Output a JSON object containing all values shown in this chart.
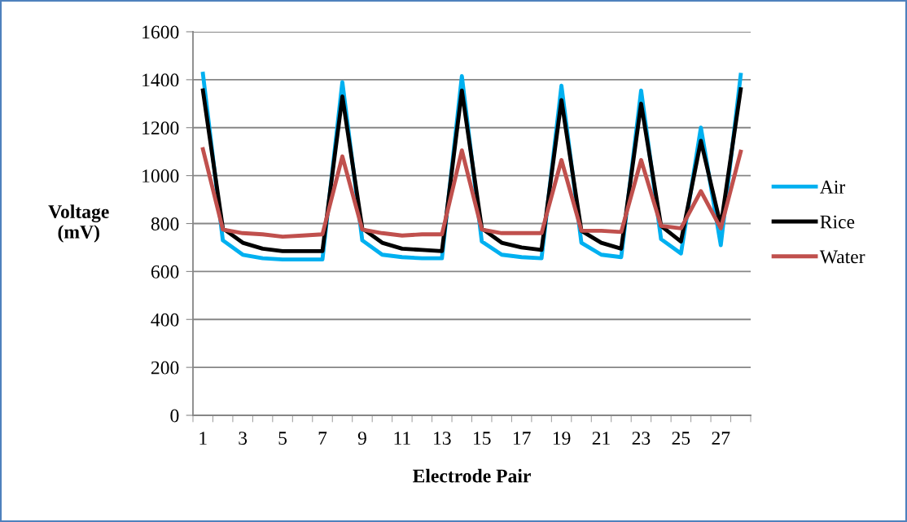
{
  "chart_data": {
    "type": "line",
    "xlabel": "Electrode Pair",
    "ylabel": "Voltage\n(mV)",
    "categories": [
      "1",
      null,
      "3",
      null,
      "5",
      null,
      "7",
      null,
      "9",
      null,
      "11",
      null,
      "13",
      null,
      "15",
      null,
      "17",
      null,
      "19",
      null,
      "21",
      null,
      "23",
      null,
      "25",
      null,
      "27",
      null
    ],
    "series": [
      {
        "name": "Air",
        "color": "#00b0f0",
        "values": [
          1425,
          730,
          670,
          655,
          650,
          650,
          650,
          1390,
          730,
          670,
          660,
          655,
          655,
          1415,
          725,
          670,
          660,
          655,
          1375,
          720,
          670,
          660,
          1355,
          735,
          675,
          1200,
          710,
          1420
        ]
      },
      {
        "name": "Rice",
        "color": "#000000",
        "values": [
          1355,
          780,
          720,
          695,
          685,
          685,
          685,
          1330,
          780,
          720,
          695,
          690,
          685,
          1355,
          780,
          720,
          700,
          690,
          1315,
          770,
          720,
          695,
          1300,
          790,
          725,
          1145,
          790,
          1360
        ]
      },
      {
        "name": "Water",
        "color": "#c0504d",
        "values": [
          1110,
          775,
          760,
          755,
          745,
          750,
          755,
          1080,
          775,
          760,
          750,
          755,
          755,
          1105,
          775,
          760,
          760,
          760,
          1065,
          770,
          770,
          765,
          1065,
          790,
          780,
          935,
          780,
          1100
        ]
      }
    ],
    "ylim": [
      0,
      1600
    ],
    "yticks": [
      0,
      200,
      400,
      600,
      800,
      1000,
      1200,
      1400,
      1600
    ],
    "grid": "y",
    "legend": "right",
    "marker": "none",
    "line_style": "solid"
  }
}
